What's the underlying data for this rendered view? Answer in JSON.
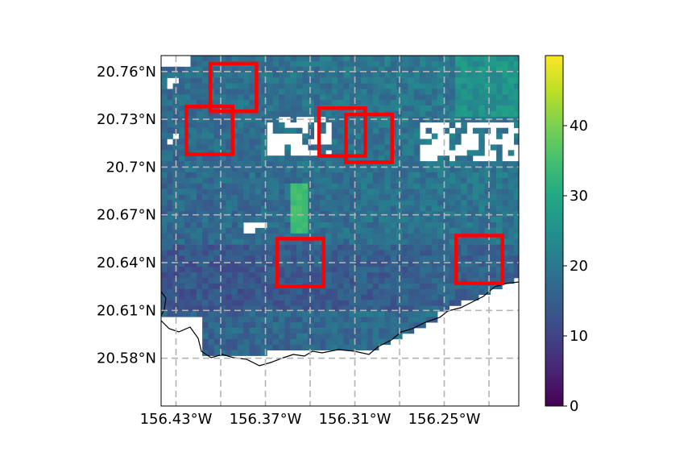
{
  "map": {
    "lat_ticks": [
      "20.76°N",
      "20.73°N",
      "20.7°N",
      "20.67°N",
      "20.64°N",
      "20.61°N",
      "20.58°N"
    ],
    "lon_ticks": [
      "156.43°W",
      "156.37°W",
      "156.31°W",
      "156.25°W"
    ],
    "lat_tick_values": [
      20.76,
      20.73,
      20.7,
      20.67,
      20.64,
      20.61,
      20.58
    ],
    "lon_tick_values": [
      -156.43,
      -156.37,
      -156.31,
      -156.25
    ],
    "extent": {
      "lon_min": -156.44,
      "lon_max": -156.2,
      "lat_min": 20.55,
      "lat_max": 20.77
    },
    "gridlines": true,
    "colormap": "viridis",
    "coastline_color": "#000000",
    "box_color": "#ff0000",
    "boxes": [
      {
        "lon_min": -156.407,
        "lon_max": -156.376,
        "lat_min": 20.735,
        "lat_max": 20.765
      },
      {
        "lon_min": -156.423,
        "lon_max": -156.392,
        "lat_min": 20.708,
        "lat_max": 20.738
      },
      {
        "lon_min": -156.334,
        "lon_max": -156.303,
        "lat_min": 20.707,
        "lat_max": 20.737
      },
      {
        "lon_min": -156.316,
        "lon_max": -156.285,
        "lat_min": 20.703,
        "lat_max": 20.733
      },
      {
        "lon_min": -156.362,
        "lon_max": -156.331,
        "lat_min": 20.625,
        "lat_max": 20.655
      },
      {
        "lon_min": -156.242,
        "lon_max": -156.211,
        "lat_min": 20.627,
        "lat_max": 20.657
      }
    ]
  },
  "colorbar": {
    "ticks": [
      "0",
      "10",
      "20",
      "30",
      "40"
    ],
    "tick_values": [
      0,
      10,
      20,
      30,
      40
    ],
    "vmin": 0,
    "vmax": 50
  }
}
